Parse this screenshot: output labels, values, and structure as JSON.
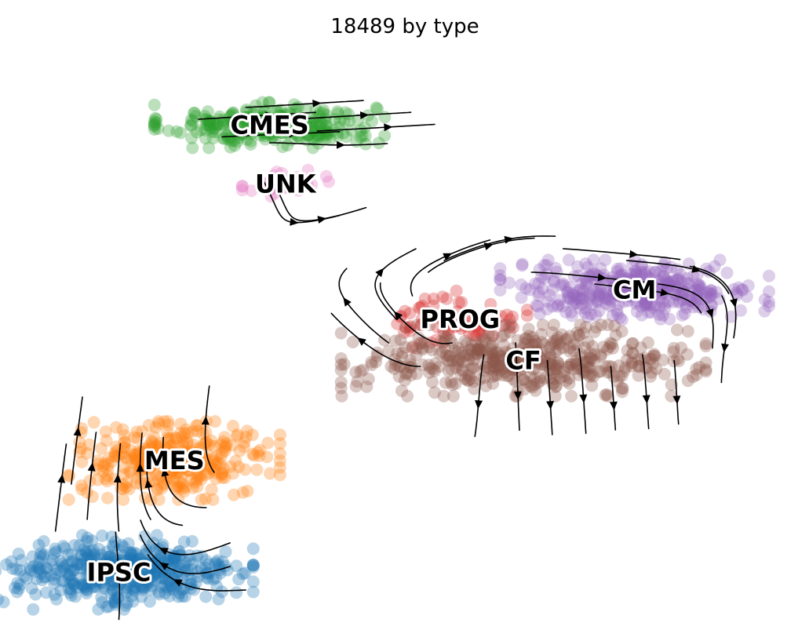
{
  "chart_data": {
    "type": "scatter",
    "title": "18489 by type",
    "xlabel": "",
    "ylabel": "",
    "grid": false,
    "axes_visible": false,
    "legend": "on data",
    "overlay": "velocity streamlines",
    "xlim": [
      0,
      100
    ],
    "ylim": [
      0,
      100
    ],
    "clusters": [
      {
        "label": "CMES",
        "color": "#2ca02c",
        "center": [
          33,
          87
        ],
        "spread": [
          12,
          3.2
        ],
        "n": 280
      },
      {
        "label": "UNK",
        "color": "#e377c2",
        "center": [
          35,
          77
        ],
        "spread": [
          4.5,
          2.2
        ],
        "n": 38
      },
      {
        "label": "CM",
        "color": "#9467bd",
        "center": [
          79,
          59
        ],
        "spread": [
          14,
          4.2
        ],
        "n": 360
      },
      {
        "label": "PROG",
        "color": "#d62728",
        "center": [
          57,
          54
        ],
        "spread": [
          7,
          4
        ],
        "n": 70
      },
      {
        "label": "CF",
        "color": "#8c564b",
        "center": [
          65,
          47
        ],
        "spread": [
          19,
          5
        ],
        "n": 460
      },
      {
        "label": "MES",
        "color": "#ff7f0e",
        "center": [
          21,
          30
        ],
        "spread": [
          11,
          5.5
        ],
        "n": 330
      },
      {
        "label": "IPSC",
        "color": "#1f77b4",
        "center": [
          14,
          11
        ],
        "spread": [
          14,
          5.2
        ],
        "n": 460
      }
    ]
  }
}
